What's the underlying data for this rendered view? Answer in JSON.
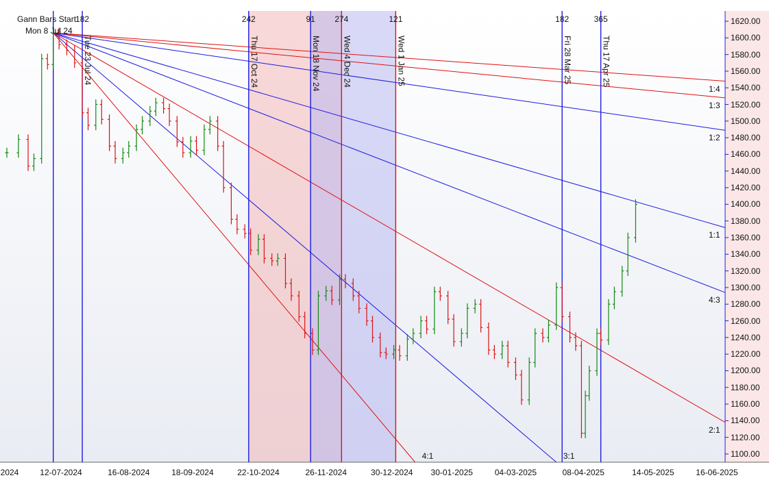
{
  "chart_data": {
    "type": "ohlc",
    "title": "Gann Bars Start",
    "start_label": "Mon 8 Jul 24",
    "x_range": [
      "2024-06-14",
      "2025-06-30"
    ],
    "y_range": [
      1090,
      1630
    ],
    "y_ticks": [
      "1100.00",
      "1120.00",
      "1140.00",
      "1160.00",
      "1180.00",
      "1200.00",
      "1220.00",
      "1240.00",
      "1260.00",
      "1280.00",
      "1300.00",
      "1320.00",
      "1340.00",
      "1360.00",
      "1380.00",
      "1400.00",
      "1420.00",
      "1440.00",
      "1460.00",
      "1480.00",
      "1500.00",
      "1520.00",
      "1540.00",
      "1560.00",
      "1580.00",
      "1600.00",
      "1620.00"
    ],
    "x_ticks": [
      "12-07-2024",
      "16-08-2024",
      "18-09-2024",
      "22-10-2024",
      "26-11-2024",
      "30-12-2024",
      "30-01-2025",
      "04-03-2025",
      "08-04-2025",
      "14-05-2025",
      "16-06-2025"
    ],
    "x_tick_first_partial": "2024",
    "bar_count_labels": [
      {
        "text": "182",
        "date": "2024-07-23"
      },
      {
        "text": "242",
        "date": "2024-10-17"
      },
      {
        "text": "91",
        "date": "2024-11-18"
      },
      {
        "text": "274",
        "date": "2024-12-04"
      },
      {
        "text": "121",
        "date": "2025-01-01"
      },
      {
        "text": "182",
        "date": "2025-03-28"
      },
      {
        "text": "365",
        "date": "2025-04-17"
      }
    ],
    "vertical_lines": [
      {
        "date": "2024-07-08",
        "color": "blue",
        "label": ""
      },
      {
        "date": "2024-07-23",
        "color": "blue",
        "label": "Tue 23 Jul 24"
      },
      {
        "date": "2024-10-17",
        "color": "blue",
        "label": "Thu 17 Oct 24"
      },
      {
        "date": "2024-11-18",
        "color": "blue",
        "label": "Mon 18 Nov 24"
      },
      {
        "date": "2024-12-04",
        "color": "red",
        "label": "Wed 4 Dec 24"
      },
      {
        "date": "2025-01-01",
        "color": "red",
        "label": "Wed 1 Jan 25"
      },
      {
        "date": "2025-03-28",
        "color": "blue",
        "label": "Fri 28 Mar 25"
      },
      {
        "date": "2025-04-17",
        "color": "blue",
        "label": "Thu 17 Apr 25"
      }
    ],
    "shaded_zones": [
      {
        "from": "2024-10-17",
        "to": "2024-12-04",
        "color": "#f2b8b8"
      },
      {
        "from": "2024-11-18",
        "to": "2025-01-01",
        "color": "#b9b9f0"
      }
    ],
    "gann_fan": {
      "origin": {
        "date": "2024-07-08",
        "price": 1606
      },
      "lines": [
        {
          "ratio": "1:4",
          "color": "red",
          "end_price": 1548
        },
        {
          "ratio": "1:3",
          "color": "red",
          "end_price": 1528
        },
        {
          "ratio": "1:2",
          "color": "blue",
          "end_price": 1489
        },
        {
          "ratio": "1:1",
          "color": "blue",
          "end_price": 1372
        },
        {
          "ratio": "4:3",
          "color": "blue",
          "end_price": 1294
        },
        {
          "ratio": "2:1",
          "color": "red",
          "end_price": 1138
        },
        {
          "ratio": "3:1",
          "color": "blue",
          "end_price": null,
          "end_date": "2025-03-25"
        },
        {
          "ratio": "4:1",
          "color": "red",
          "end_price": null,
          "end_date": "2025-01-11"
        }
      ]
    },
    "ohlc_points": [
      [
        "2024-06-14",
        1462
      ],
      [
        "2024-06-20",
        1478
      ],
      [
        "2024-06-25",
        1446
      ],
      [
        "2024-06-28",
        1455
      ],
      [
        "2024-07-02",
        1575
      ],
      [
        "2024-07-05",
        1568
      ],
      [
        "2024-07-08",
        1606
      ],
      [
        "2024-07-11",
        1592
      ],
      [
        "2024-07-15",
        1585
      ],
      [
        "2024-07-19",
        1570
      ],
      [
        "2024-07-23",
        1510
      ],
      [
        "2024-07-26",
        1495
      ],
      [
        "2024-07-30",
        1520
      ],
      [
        "2024-08-02",
        1502
      ],
      [
        "2024-08-06",
        1470
      ],
      [
        "2024-08-09",
        1455
      ],
      [
        "2024-08-13",
        1462
      ],
      [
        "2024-08-16",
        1470
      ],
      [
        "2024-08-20",
        1490
      ],
      [
        "2024-08-23",
        1500
      ],
      [
        "2024-08-27",
        1512
      ],
      [
        "2024-08-30",
        1522
      ],
      [
        "2024-09-03",
        1515
      ],
      [
        "2024-09-06",
        1500
      ],
      [
        "2024-09-10",
        1475
      ],
      [
        "2024-09-13",
        1462
      ],
      [
        "2024-09-17",
        1476
      ],
      [
        "2024-09-20",
        1465
      ],
      [
        "2024-09-24",
        1490
      ],
      [
        "2024-09-27",
        1500
      ],
      [
        "2024-10-01",
        1470
      ],
      [
        "2024-10-04",
        1420
      ],
      [
        "2024-10-08",
        1382
      ],
      [
        "2024-10-11",
        1370
      ],
      [
        "2024-10-15",
        1365
      ],
      [
        "2024-10-18",
        1345
      ],
      [
        "2024-10-22",
        1358
      ],
      [
        "2024-10-25",
        1335
      ],
      [
        "2024-10-29",
        1332
      ],
      [
        "2024-11-01",
        1335
      ],
      [
        "2024-11-05",
        1305
      ],
      [
        "2024-11-08",
        1290
      ],
      [
        "2024-11-12",
        1265
      ],
      [
        "2024-11-15",
        1245
      ],
      [
        "2024-11-19",
        1225
      ],
      [
        "2024-11-22",
        1290
      ],
      [
        "2024-11-26",
        1296
      ],
      [
        "2024-11-29",
        1285
      ],
      [
        "2024-12-03",
        1310
      ],
      [
        "2024-12-06",
        1305
      ],
      [
        "2024-12-10",
        1290
      ],
      [
        "2024-12-13",
        1275
      ],
      [
        "2024-12-17",
        1260
      ],
      [
        "2024-12-20",
        1240
      ],
      [
        "2024-12-24",
        1222
      ],
      [
        "2024-12-27",
        1220
      ],
      [
        "2024-12-31",
        1225
      ],
      [
        "2025-01-03",
        1218
      ],
      [
        "2025-01-07",
        1238
      ],
      [
        "2025-01-10",
        1245
      ],
      [
        "2025-01-14",
        1260
      ],
      [
        "2025-01-17",
        1250
      ],
      [
        "2025-01-21",
        1295
      ],
      [
        "2025-01-24",
        1290
      ],
      [
        "2025-01-28",
        1262
      ],
      [
        "2025-01-31",
        1235
      ],
      [
        "2025-02-04",
        1245
      ],
      [
        "2025-02-07",
        1275
      ],
      [
        "2025-02-11",
        1280
      ],
      [
        "2025-02-14",
        1252
      ],
      [
        "2025-02-18",
        1225
      ],
      [
        "2025-02-21",
        1220
      ],
      [
        "2025-02-25",
        1230
      ],
      [
        "2025-02-28",
        1210
      ],
      [
        "2025-03-04",
        1195
      ],
      [
        "2025-03-07",
        1165
      ],
      [
        "2025-03-11",
        1210
      ],
      [
        "2025-03-14",
        1245
      ],
      [
        "2025-03-18",
        1240
      ],
      [
        "2025-03-21",
        1255
      ],
      [
        "2025-03-25",
        1300
      ],
      [
        "2025-03-28",
        1265
      ],
      [
        "2025-04-01",
        1240
      ],
      [
        "2025-04-04",
        1230
      ],
      [
        "2025-04-07",
        1125
      ],
      [
        "2025-04-09",
        1170
      ],
      [
        "2025-04-11",
        1200
      ],
      [
        "2025-04-15",
        1245
      ],
      [
        "2025-04-17",
        1237
      ],
      [
        "2025-04-21",
        1280
      ],
      [
        "2025-04-24",
        1295
      ],
      [
        "2025-04-28",
        1320
      ],
      [
        "2025-05-01",
        1360
      ],
      [
        "2025-05-05",
        1400
      ]
    ]
  }
}
